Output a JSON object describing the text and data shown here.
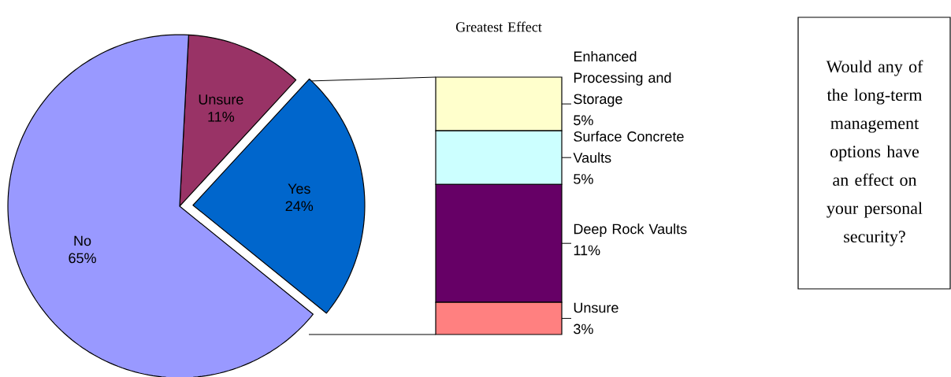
{
  "chart_data": [
    {
      "type": "pie",
      "categories": [
        "Unsure",
        "Yes",
        "No"
      ],
      "values": [
        11,
        24,
        65
      ],
      "value_labels": [
        "11%",
        "24%",
        "65%"
      ],
      "colors": [
        "#993366",
        "#0066cc",
        "#9999ff"
      ],
      "annotations": [
        "Would any of the long-term management options have an effect on your personal security?"
      ]
    },
    {
      "type": "bar",
      "stacked": true,
      "title": "Greatest Effect",
      "categories": [
        null
      ],
      "series": [
        {
          "name": "Unsure",
          "color": "#ff8080",
          "values": [
            3
          ],
          "value_labels": [
            "3%"
          ]
        },
        {
          "name": "Deep Rock Vaults",
          "color": "#660066",
          "values": [
            11
          ],
          "value_labels": [
            "11%"
          ]
        },
        {
          "name": "Surface Concrete Vaults",
          "color": "#ccffff",
          "values": [
            5
          ],
          "value_labels": [
            "5%"
          ]
        },
        {
          "name": "Enhanced Processing and Storage",
          "color": "#ffffcc",
          "values": [
            5
          ],
          "value_labels": [
            "5%"
          ]
        }
      ]
    }
  ]
}
